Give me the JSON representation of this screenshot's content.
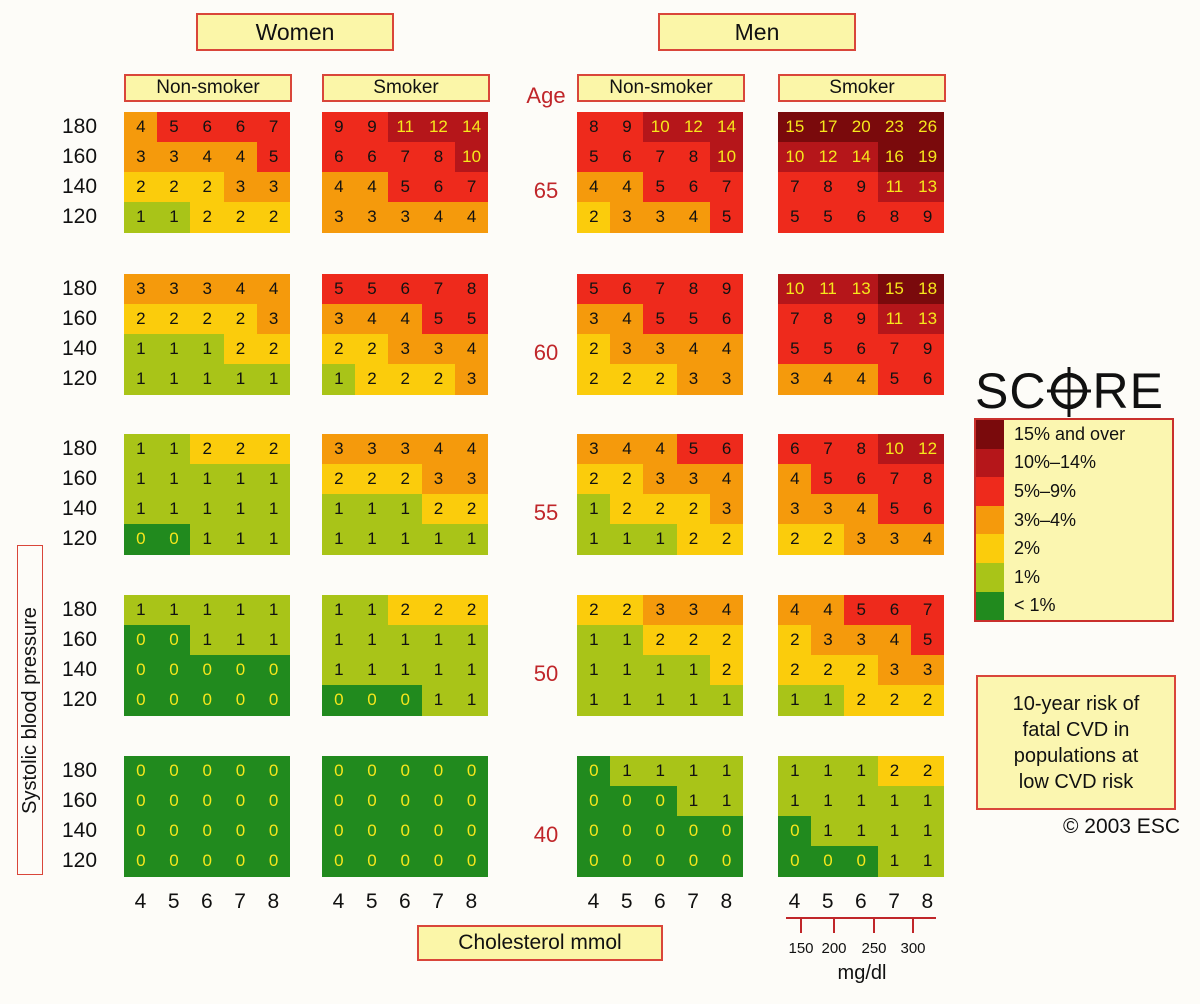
{
  "chart_data": {
    "type": "heatmap",
    "title": "SCORE",
    "subtitle": "10-year risk of fatal CVD in populations at low CVD risk",
    "copyright": "© 2003 ESC",
    "sexes": [
      "Women",
      "Men"
    ],
    "smoking_status": [
      "Non-smoker",
      "Smoker"
    ],
    "age_header": "Age",
    "ages": [
      "65",
      "60",
      "55",
      "50",
      "40"
    ],
    "ylabel": "Systolic blood pressure",
    "sbp_ticks": [
      "180",
      "160",
      "140",
      "120"
    ],
    "xlabel": "Cholesterol mmol",
    "cholesterol_ticks": [
      "4",
      "5",
      "6",
      "7",
      "8"
    ],
    "mgdl_ticks": [
      "150",
      "200",
      "250",
      "300"
    ],
    "mgdl_unit": "mg/dl",
    "legend": [
      {
        "label": "15% and over",
        "min": 15,
        "color": "#7a0a0c"
      },
      {
        "label": "10%–14%",
        "min": 10,
        "color": "#b5161a"
      },
      {
        "label": "5%–9%",
        "min": 5,
        "color": "#ee2a1c"
      },
      {
        "label": "3%–4%",
        "min": 3,
        "color": "#f59a0c"
      },
      {
        "label": "2%",
        "min": 2,
        "color": "#fbcc0c"
      },
      {
        "label": "1%",
        "min": 1,
        "color": "#a9c418"
      },
      {
        "label": "< 1%",
        "min": 0,
        "color": "#218a1e"
      }
    ],
    "panels": [
      {
        "sex": "Women",
        "smoking": "Non-smoker",
        "age": "65",
        "values": [
          [
            4,
            5,
            6,
            6,
            7
          ],
          [
            3,
            3,
            4,
            4,
            5
          ],
          [
            2,
            2,
            2,
            3,
            3
          ],
          [
            1,
            1,
            2,
            2,
            2
          ]
        ]
      },
      {
        "sex": "Women",
        "smoking": "Smoker",
        "age": "65",
        "values": [
          [
            9,
            9,
            11,
            12,
            14
          ],
          [
            6,
            6,
            7,
            8,
            10
          ],
          [
            4,
            4,
            5,
            6,
            7
          ],
          [
            3,
            3,
            3,
            4,
            4
          ]
        ]
      },
      {
        "sex": "Men",
        "smoking": "Non-smoker",
        "age": "65",
        "values": [
          [
            8,
            9,
            10,
            12,
            14
          ],
          [
            5,
            6,
            7,
            8,
            10
          ],
          [
            4,
            4,
            5,
            6,
            7
          ],
          [
            2,
            3,
            3,
            4,
            5
          ]
        ]
      },
      {
        "sex": "Men",
        "smoking": "Smoker",
        "age": "65",
        "values": [
          [
            15,
            17,
            20,
            23,
            26
          ],
          [
            10,
            12,
            14,
            16,
            19
          ],
          [
            7,
            8,
            9,
            11,
            13
          ],
          [
            5,
            5,
            6,
            8,
            9
          ]
        ]
      },
      {
        "sex": "Women",
        "smoking": "Non-smoker",
        "age": "60",
        "values": [
          [
            3,
            3,
            3,
            4,
            4
          ],
          [
            2,
            2,
            2,
            2,
            3
          ],
          [
            1,
            1,
            1,
            2,
            2
          ],
          [
            1,
            1,
            1,
            1,
            1
          ]
        ]
      },
      {
        "sex": "Women",
        "smoking": "Smoker",
        "age": "60",
        "values": [
          [
            5,
            5,
            6,
            7,
            8
          ],
          [
            3,
            4,
            4,
            5,
            5
          ],
          [
            2,
            2,
            3,
            3,
            4
          ],
          [
            1,
            2,
            2,
            2,
            3
          ]
        ]
      },
      {
        "sex": "Men",
        "smoking": "Non-smoker",
        "age": "60",
        "values": [
          [
            5,
            6,
            7,
            8,
            9
          ],
          [
            3,
            4,
            5,
            5,
            6
          ],
          [
            2,
            3,
            3,
            4,
            4
          ],
          [
            2,
            2,
            2,
            3,
            3
          ]
        ]
      },
      {
        "sex": "Men",
        "smoking": "Smoker",
        "age": "60",
        "values": [
          [
            10,
            11,
            13,
            15,
            18
          ],
          [
            7,
            8,
            9,
            11,
            13
          ],
          [
            5,
            5,
            6,
            7,
            9
          ],
          [
            3,
            4,
            4,
            5,
            6
          ]
        ]
      },
      {
        "sex": "Women",
        "smoking": "Non-smoker",
        "age": "55",
        "values": [
          [
            1,
            1,
            2,
            2,
            2
          ],
          [
            1,
            1,
            1,
            1,
            1
          ],
          [
            1,
            1,
            1,
            1,
            1
          ],
          [
            0,
            0,
            1,
            1,
            1
          ]
        ]
      },
      {
        "sex": "Women",
        "smoking": "Smoker",
        "age": "55",
        "values": [
          [
            3,
            3,
            3,
            4,
            4
          ],
          [
            2,
            2,
            2,
            3,
            3
          ],
          [
            1,
            1,
            1,
            2,
            2
          ],
          [
            1,
            1,
            1,
            1,
            1
          ]
        ]
      },
      {
        "sex": "Men",
        "smoking": "Non-smoker",
        "age": "55",
        "values": [
          [
            3,
            4,
            4,
            5,
            6
          ],
          [
            2,
            2,
            3,
            3,
            4
          ],
          [
            1,
            2,
            2,
            2,
            3
          ],
          [
            1,
            1,
            1,
            2,
            2
          ]
        ]
      },
      {
        "sex": "Men",
        "smoking": "Smoker",
        "age": "55",
        "values": [
          [
            6,
            7,
            8,
            10,
            12
          ],
          [
            4,
            5,
            6,
            7,
            8
          ],
          [
            3,
            3,
            4,
            5,
            6
          ],
          [
            2,
            2,
            3,
            3,
            4
          ]
        ]
      },
      {
        "sex": "Women",
        "smoking": "Non-smoker",
        "age": "50",
        "values": [
          [
            1,
            1,
            1,
            1,
            1
          ],
          [
            0,
            0,
            1,
            1,
            1
          ],
          [
            0,
            0,
            0,
            0,
            0
          ],
          [
            0,
            0,
            0,
            0,
            0
          ]
        ]
      },
      {
        "sex": "Women",
        "smoking": "Smoker",
        "age": "50",
        "values": [
          [
            1,
            1,
            2,
            2,
            2
          ],
          [
            1,
            1,
            1,
            1,
            1
          ],
          [
            1,
            1,
            1,
            1,
            1
          ],
          [
            0,
            0,
            0,
            1,
            1
          ]
        ]
      },
      {
        "sex": "Men",
        "smoking": "Non-smoker",
        "age": "50",
        "values": [
          [
            2,
            2,
            3,
            3,
            4
          ],
          [
            1,
            1,
            2,
            2,
            2
          ],
          [
            1,
            1,
            1,
            1,
            2
          ],
          [
            1,
            1,
            1,
            1,
            1
          ]
        ]
      },
      {
        "sex": "Men",
        "smoking": "Smoker",
        "age": "50",
        "values": [
          [
            4,
            4,
            5,
            6,
            7
          ],
          [
            2,
            3,
            3,
            4,
            5
          ],
          [
            2,
            2,
            2,
            3,
            3
          ],
          [
            1,
            1,
            2,
            2,
            2
          ]
        ]
      },
      {
        "sex": "Women",
        "smoking": "Non-smoker",
        "age": "40",
        "values": [
          [
            0,
            0,
            0,
            0,
            0
          ],
          [
            0,
            0,
            0,
            0,
            0
          ],
          [
            0,
            0,
            0,
            0,
            0
          ],
          [
            0,
            0,
            0,
            0,
            0
          ]
        ]
      },
      {
        "sex": "Women",
        "smoking": "Smoker",
        "age": "40",
        "values": [
          [
            0,
            0,
            0,
            0,
            0
          ],
          [
            0,
            0,
            0,
            0,
            0
          ],
          [
            0,
            0,
            0,
            0,
            0
          ],
          [
            0,
            0,
            0,
            0,
            0
          ]
        ]
      },
      {
        "sex": "Men",
        "smoking": "Non-smoker",
        "age": "40",
        "values": [
          [
            0,
            1,
            1,
            1,
            1
          ],
          [
            0,
            0,
            0,
            1,
            1
          ],
          [
            0,
            0,
            0,
            0,
            0
          ],
          [
            0,
            0,
            0,
            0,
            0
          ]
        ]
      },
      {
        "sex": "Men",
        "smoking": "Smoker",
        "age": "40",
        "values": [
          [
            1,
            1,
            1,
            2,
            2
          ],
          [
            1,
            1,
            1,
            1,
            1
          ],
          [
            0,
            1,
            1,
            1,
            1
          ],
          [
            0,
            0,
            0,
            1,
            1
          ]
        ]
      }
    ]
  },
  "logo": {
    "left": "SC",
    "right": "RE"
  },
  "note_lines": [
    "10-year risk of",
    "fatal CVD in",
    "populations at",
    "low CVD risk"
  ]
}
